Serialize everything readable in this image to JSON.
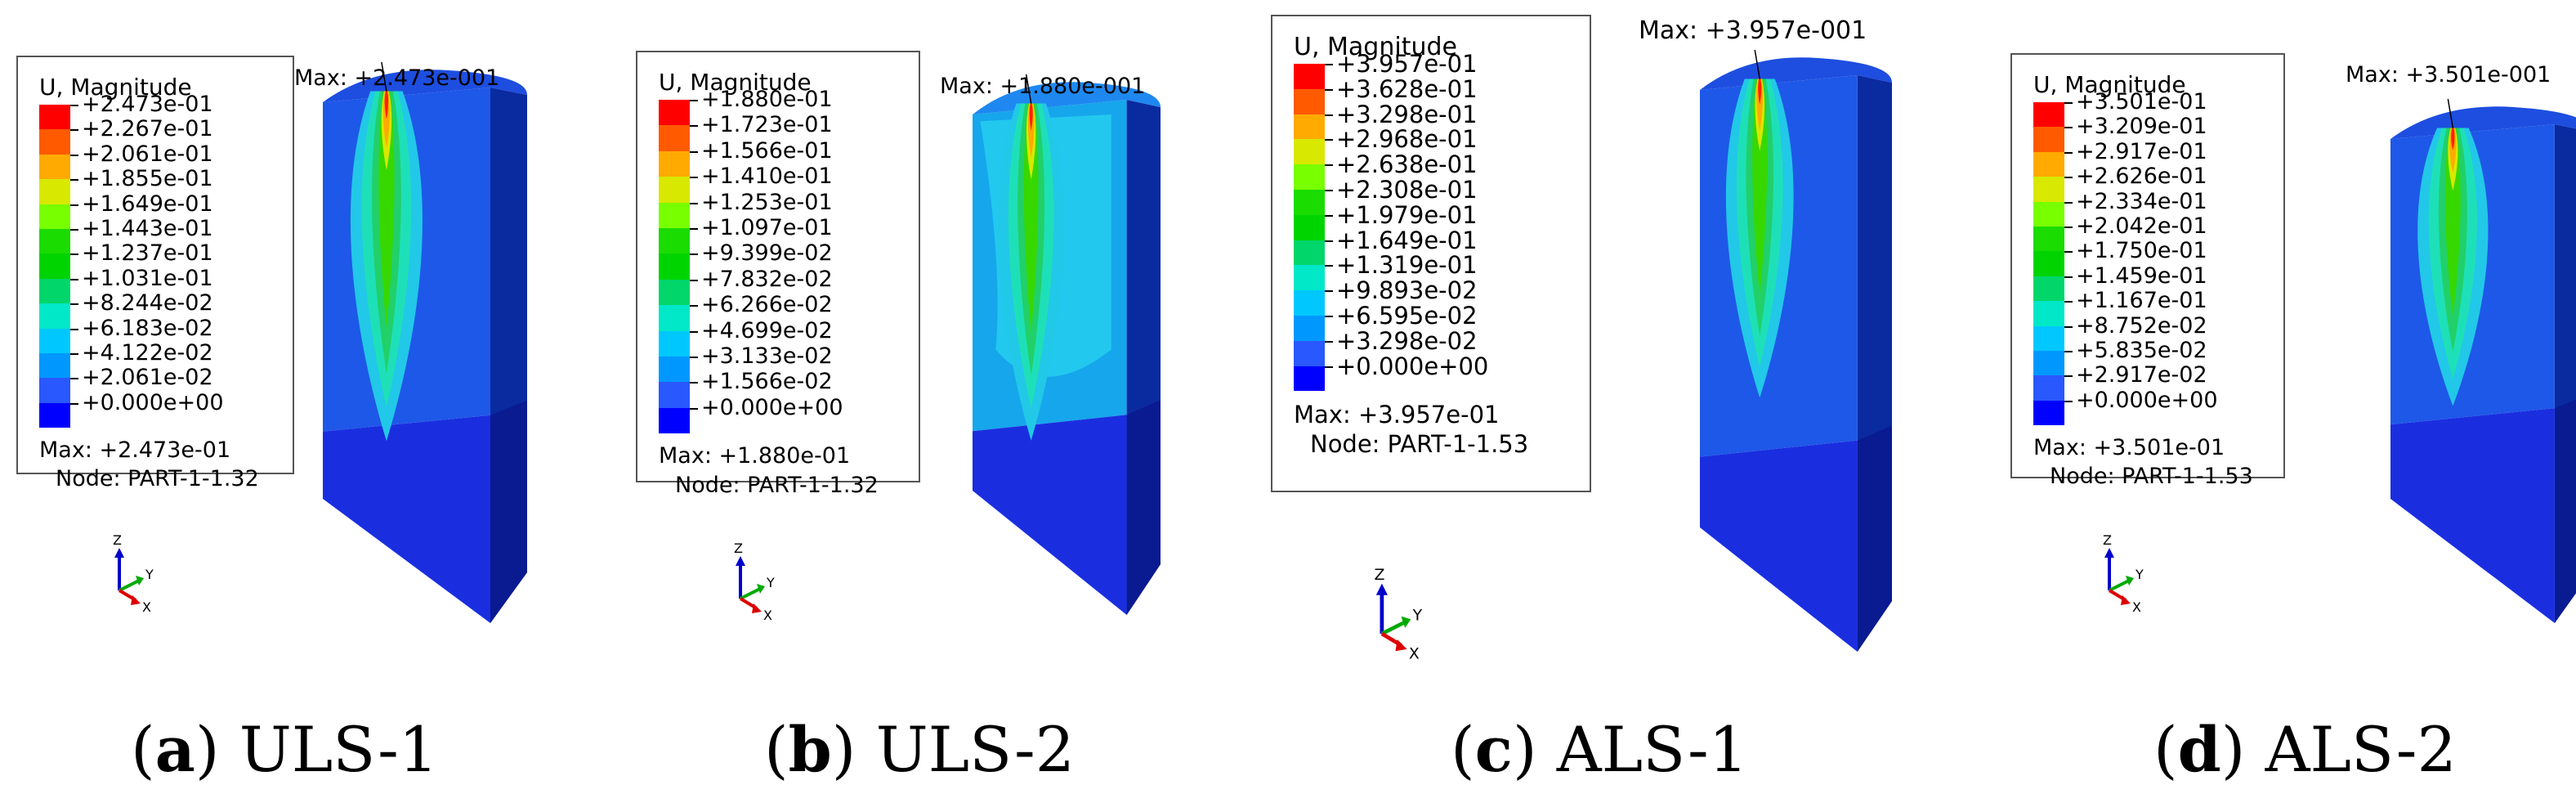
{
  "legend_title": "U, Magnitude",
  "max_prefix": "Max:",
  "node_prefix": "Node:",
  "axis_labels": {
    "z": "Z",
    "y": "Y",
    "x": "X"
  },
  "colors": [
    "#ff0000",
    "#ff5a00",
    "#ffaa00",
    "#d8e800",
    "#78ff00",
    "#1adc00",
    "#00d400",
    "#00d66a",
    "#00e8c8",
    "#00c8ff",
    "#0098ff",
    "#2a58ff",
    "#0000ff"
  ],
  "panels": [
    {
      "caption_letter": "a",
      "caption_text": "ULS-1",
      "values": [
        "+2.473e-01",
        "+2.267e-01",
        "+2.061e-01",
        "+1.855e-01",
        "+1.649e-01",
        "+1.443e-01",
        "+1.237e-01",
        "+1.031e-01",
        "+8.244e-02",
        "+6.183e-02",
        "+4.122e-02",
        "+2.061e-02",
        "+0.000e+00"
      ],
      "max_value": "+2.473e-01",
      "node": "PART-1-1.32",
      "model_max": "+2.473e-001"
    },
    {
      "caption_letter": "b",
      "caption_text": "ULS-2",
      "values": [
        "+1.880e-01",
        "+1.723e-01",
        "+1.566e-01",
        "+1.410e-01",
        "+1.253e-01",
        "+1.097e-01",
        "+9.399e-02",
        "+7.832e-02",
        "+6.266e-02",
        "+4.699e-02",
        "+3.133e-02",
        "+1.566e-02",
        "+0.000e+00"
      ],
      "max_value": "+1.880e-01",
      "node": "PART-1-1.32",
      "model_max": "+1.880e-001"
    },
    {
      "caption_letter": "c",
      "caption_text": "ALS-1",
      "values": [
        "+3.957e-01",
        "+3.628e-01",
        "+3.298e-01",
        "+2.968e-01",
        "+2.638e-01",
        "+2.308e-01",
        "+1.979e-01",
        "+1.649e-01",
        "+1.319e-01",
        "+9.893e-02",
        "+6.595e-02",
        "+3.298e-02",
        "+0.000e+00"
      ],
      "max_value": "+3.957e-01",
      "node": "PART-1-1.53",
      "model_max": "+3.957e-001"
    },
    {
      "caption_letter": "d",
      "caption_text": "ALS-2",
      "values": [
        "+3.501e-01",
        "+3.209e-01",
        "+2.917e-01",
        "+2.626e-01",
        "+2.334e-01",
        "+2.042e-01",
        "+1.750e-01",
        "+1.459e-01",
        "+1.167e-01",
        "+8.752e-02",
        "+5.835e-02",
        "+2.917e-02",
        "+0.000e+00"
      ],
      "max_value": "+3.501e-01",
      "node": "PART-1-1.53",
      "model_max": "+3.501e-001"
    }
  ]
}
